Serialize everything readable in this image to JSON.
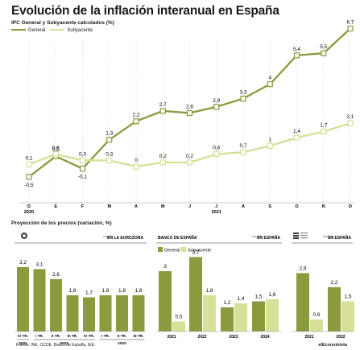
{
  "header": {
    "title": "Evolución de la inflación interanual en España",
    "subtitle": "IPC General y Subyacente calculados (%)",
    "legend": [
      {
        "label": "General",
        "color": "#8a9a3c"
      },
      {
        "label": "Subyacente",
        "color": "#d8df96"
      }
    ]
  },
  "colors": {
    "general": "#8a9a3c",
    "subyacente": "#d8df96",
    "grid": "#d0d0d0"
  },
  "chart_data": [
    {
      "type": "line",
      "categories": [
        "D",
        "E",
        "F",
        "M",
        "A",
        "M",
        "J",
        "J",
        "A",
        "S",
        "O",
        "N",
        "D"
      ],
      "year_labels": [
        {
          "label": "2020",
          "index": 0
        },
        {
          "label": "2021",
          "index": 7
        }
      ],
      "series": [
        {
          "name": "General",
          "values": [
            -0.5,
            0.5,
            -0.1,
            1.3,
            2.2,
            2.7,
            2.6,
            2.9,
            3.3,
            4,
            5.4,
            5.5,
            6.7
          ],
          "labels": [
            "-0,5",
            "0,5",
            "-0,1",
            "1,3",
            "2,2",
            "2,7",
            "2,6",
            "2,9",
            "3,3",
            "4",
            "5,4",
            "5,5",
            "6,7"
          ]
        },
        {
          "name": "Subyacente",
          "values": [
            0.1,
            0.6,
            0.3,
            0.3,
            0,
            0.2,
            0.2,
            0.6,
            0.7,
            1,
            1.4,
            1.7,
            2.1
          ],
          "labels": [
            "0,1",
            "0,6",
            "0,3",
            "0,3",
            "0",
            "0,2",
            "0,2",
            "0,6",
            "0,7",
            "1",
            "1,4",
            "1,7",
            "2,1"
          ]
        }
      ],
      "ylim": [
        -0.6,
        7.2
      ]
    },
    {
      "type": "bar",
      "source_label": "EN LA EUROZONA",
      "categories": [
        "IV TR.",
        "I TR.",
        "II TR.",
        "III TR.",
        "IV TR.",
        "I TR.",
        "II TR.",
        "III TR."
      ],
      "year_groups": [
        {
          "label": "2021",
          "from": 0,
          "to": 0
        },
        {
          "label": "2022",
          "from": 1,
          "to": 4
        },
        {
          "label": "2023",
          "from": 5,
          "to": 7
        }
      ],
      "values": [
        3.2,
        3.1,
        2.6,
        1.8,
        1.7,
        1.8,
        1.8,
        1.8
      ],
      "labels": [
        "3,2",
        "3,1",
        "2,6",
        "1,8",
        "1,7",
        "1,8",
        "1,8",
        "1,8"
      ]
    },
    {
      "type": "bar",
      "source_label": "BANCO DE ESPAÑA",
      "region_label": "EN ESPAÑA",
      "categories": [
        "2021",
        "2022",
        "2023",
        "2024"
      ],
      "series": [
        {
          "name": "General",
          "values": [
            3,
            3.7,
            1.2,
            1.5
          ],
          "labels": [
            "3",
            "3,7",
            "1,2",
            "1,5"
          ]
        },
        {
          "name": "Subyacente",
          "values": [
            0.5,
            1.8,
            1.4,
            1.6
          ],
          "labels": [
            "0,5",
            "1,8",
            "1,4",
            "1,6"
          ]
        }
      ]
    },
    {
      "type": "bar",
      "source_label": "INE",
      "region_label": "EN ESPAÑA",
      "categories": [
        "2021",
        "2022"
      ],
      "series": [
        {
          "name": "General",
          "values": [
            2.9,
            2.2
          ],
          "labels": [
            "2,9",
            "2,2"
          ]
        },
        {
          "name": "Subyacente",
          "values": [
            0.6,
            1.5
          ],
          "labels": [
            "0,6",
            "1,5"
          ]
        }
      ]
    }
  ],
  "projection": {
    "title": "Proyección de los precios (variación, %)"
  },
  "footer": {
    "source": "Fuente: INE, OCDE, Banco de España, IEE.",
    "brand": "elEconomista"
  }
}
